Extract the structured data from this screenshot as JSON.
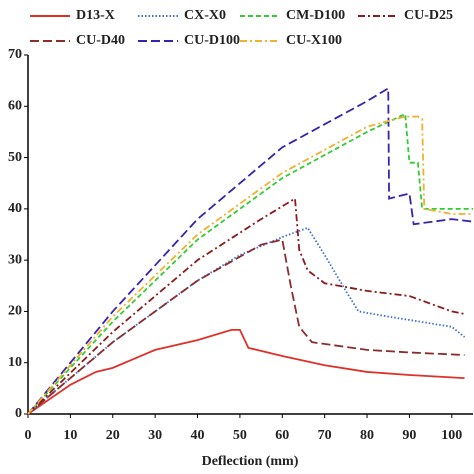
{
  "chart_data": {
    "type": "line",
    "x_label": "Deflection (mm)",
    "xlim": [
      0,
      105
    ],
    "xticks": [
      0,
      10,
      20,
      30,
      40,
      50,
      60,
      70,
      80,
      90,
      100
    ],
    "ylim": [
      0,
      70
    ],
    "yticks": [
      0,
      10,
      20,
      30,
      40,
      50,
      60,
      70
    ],
    "series": [
      {
        "name": "D13-X",
        "color": "#e0302a",
        "dash": "solid",
        "x": [
          0,
          10,
          16,
          20,
          30,
          40,
          48,
          50,
          52,
          55,
          60,
          70,
          80,
          90,
          103
        ],
        "values": [
          0,
          5.7,
          8.2,
          9,
          12.5,
          14.4,
          16.4,
          16.4,
          12.9,
          12.3,
          11.3,
          9.5,
          8.2,
          7.6,
          7
        ]
      },
      {
        "name": "CX-X0",
        "color": "#3a6fd0",
        "dash": "dotted",
        "x": [
          0,
          20,
          40,
          50,
          60,
          66,
          70,
          75,
          78,
          85,
          100,
          103
        ],
        "values": [
          0,
          14,
          26,
          31,
          34.5,
          36.3,
          31,
          24,
          20,
          19,
          17,
          15
        ]
      },
      {
        "name": "CM-D100",
        "color": "#33cc33",
        "dash": "dashed",
        "x": [
          0,
          20,
          40,
          60,
          80,
          89,
          90,
          92,
          93,
          100,
          105
        ],
        "values": [
          0,
          18,
          34,
          46,
          55,
          58.5,
          49,
          49,
          40,
          40,
          40
        ]
      },
      {
        "name": "CU-D25",
        "color": "#8b1a1a",
        "dash": "dashdot",
        "x": [
          0,
          20,
          40,
          55,
          63,
          64,
          66,
          70,
          80,
          90,
          100,
          103
        ],
        "values": [
          0,
          16,
          30,
          38,
          42,
          32,
          28,
          25.5,
          24,
          23,
          20,
          19.5
        ]
      },
      {
        "name": "CU-D40",
        "color": "#8b2d2d",
        "dash": "longdash",
        "x": [
          0,
          20,
          40,
          55,
          60,
          62,
          64,
          67,
          80,
          90,
          103
        ],
        "values": [
          0,
          14,
          26,
          33,
          34,
          25,
          17,
          14,
          12.5,
          12,
          11.5
        ]
      },
      {
        "name": "CU-D100",
        "color": "#3a22b0",
        "dash": "longdash",
        "x": [
          0,
          20,
          40,
          60,
          80,
          85,
          85.2,
          90,
          91,
          100,
          105
        ],
        "values": [
          0,
          20,
          38,
          52,
          61,
          63.5,
          42,
          43,
          37,
          38,
          37.5
        ]
      },
      {
        "name": "CU-X100",
        "color": "#f0b030",
        "dash": "dashdot",
        "x": [
          0,
          20,
          40,
          60,
          80,
          89,
          92,
          93,
          93.5,
          100,
          105
        ],
        "values": [
          0,
          19,
          35,
          47,
          56,
          58,
          58,
          57.5,
          40,
          39,
          39
        ]
      }
    ]
  }
}
